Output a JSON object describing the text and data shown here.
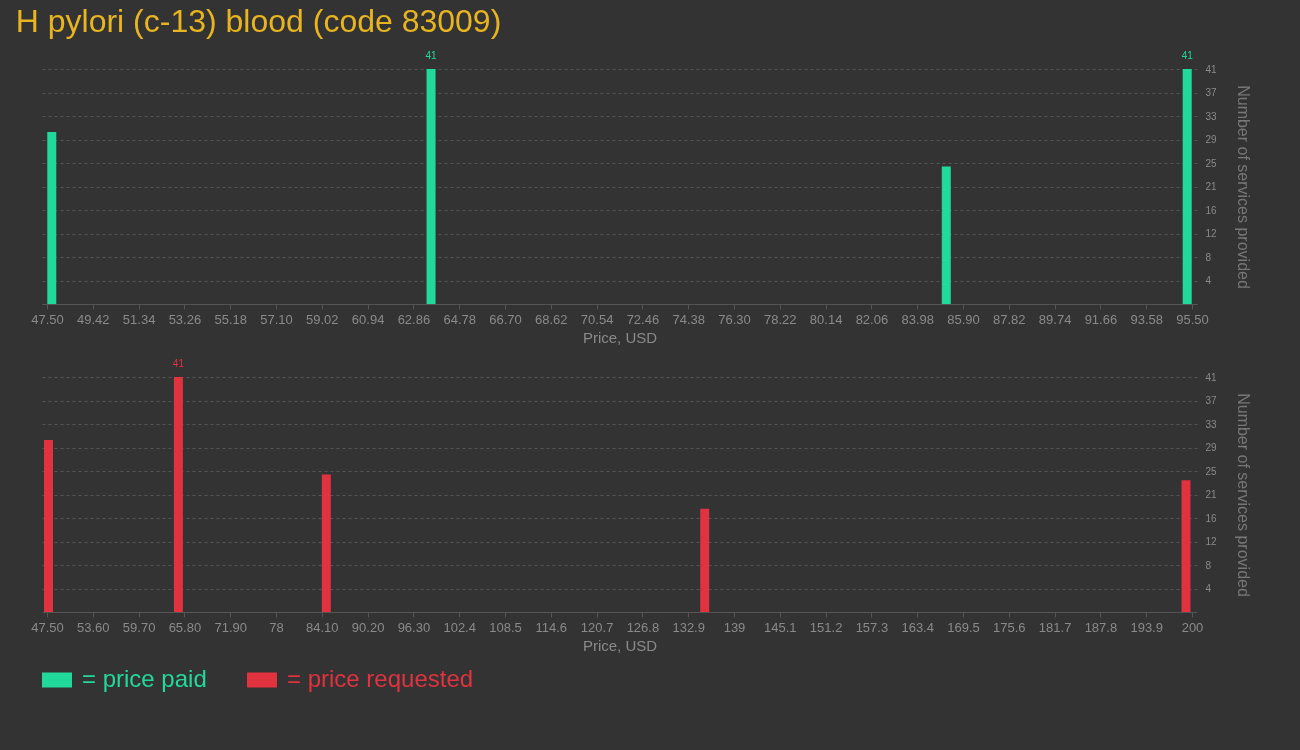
{
  "chart_data": [
    {
      "type": "bar",
      "title": "H pylori (c-13) blood (code 83009)",
      "xlabel": "Price, USD",
      "ylabel": "Number of services provided",
      "x": [
        47.7,
        63.6,
        85.2,
        95.3
      ],
      "series": [
        {
          "name": "= price paid",
          "color": "#21d99b",
          "values": [
            30,
            41,
            24,
            41
          ],
          "value_labels": [
            null,
            "41",
            null,
            "41"
          ]
        }
      ],
      "xlim": [
        47.5,
        95.5
      ],
      "xticks": [
        {
          "value": 47.5,
          "label": "47.50"
        },
        49.42,
        51.34,
        53.26,
        55.18,
        {
          "value": 57.1,
          "label": "57.10"
        },
        59.02,
        60.94,
        62.86,
        64.78,
        {
          "value": 66.7,
          "label": "66.70"
        },
        68.62,
        70.54,
        72.46,
        74.38,
        {
          "value": 76.3,
          "label": "76.30"
        },
        78.22,
        80.14,
        82.06,
        83.98,
        {
          "value": 85.9,
          "label": "85.90"
        },
        87.82,
        89.74,
        91.66,
        93.58,
        {
          "value": 95.5,
          "label": "95.50"
        }
      ],
      "ylim": [
        0,
        41
      ],
      "yticks": [
        {
          "value": 4.1,
          "label": "4"
        },
        {
          "value": 8.2,
          "label": "8"
        },
        {
          "value": 12.3,
          "label": "12"
        },
        {
          "value": 16.4,
          "label": "16"
        },
        {
          "value": 20.5,
          "label": "21"
        },
        {
          "value": 24.6,
          "label": "25"
        },
        {
          "value": 28.7,
          "label": "29"
        },
        {
          "value": 32.8,
          "label": "33"
        },
        {
          "value": 36.9,
          "label": "37"
        },
        41
      ],
      "grid": "y",
      "legend": "bottom"
    },
    {
      "type": "bar",
      "xlabel": "Price, USD",
      "ylabel": "Number of services provided",
      "x": [
        47.7,
        65.0,
        84.7,
        135.1,
        199.2
      ],
      "series": [
        {
          "name": "= price requested",
          "color": "#e0323f",
          "values": [
            30,
            41,
            24,
            18,
            23
          ],
          "value_labels": [
            null,
            "41",
            null,
            null,
            null
          ]
        }
      ],
      "xlim": [
        47.5,
        200
      ],
      "xticks": [
        {
          "value": 47.5,
          "label": "47.50"
        },
        {
          "value": 53.6,
          "label": "53.60"
        },
        {
          "value": 59.7,
          "label": "59.70"
        },
        {
          "value": 65.8,
          "label": "65.80"
        },
        {
          "value": 71.9,
          "label": "71.90"
        },
        78,
        {
          "value": 84.1,
          "label": "84.10"
        },
        {
          "value": 90.2,
          "label": "90.20"
        },
        {
          "value": 96.3,
          "label": "96.30"
        },
        102.4,
        108.5,
        114.6,
        120.7,
        126.8,
        132.9,
        139,
        145.1,
        151.2,
        157.3,
        163.4,
        169.5,
        175.6,
        181.7,
        187.8,
        193.9,
        200
      ],
      "ylim": [
        0,
        41
      ],
      "yticks": [
        {
          "value": 4.1,
          "label": "4"
        },
        {
          "value": 8.2,
          "label": "8"
        },
        {
          "value": 12.3,
          "label": "12"
        },
        {
          "value": 16.4,
          "label": "16"
        },
        {
          "value": 20.5,
          "label": "21"
        },
        {
          "value": 24.6,
          "label": "25"
        },
        {
          "value": 28.7,
          "label": "29"
        },
        {
          "value": 32.8,
          "label": "33"
        },
        {
          "value": 36.9,
          "label": "37"
        },
        41
      ],
      "grid": "y",
      "legend": "bottom"
    }
  ]
}
